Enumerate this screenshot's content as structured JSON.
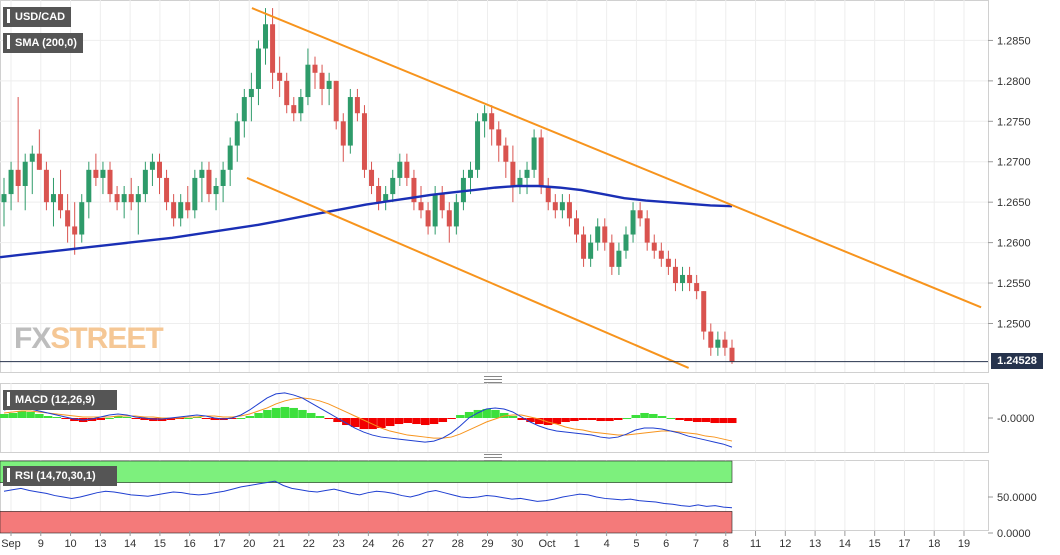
{
  "legends": {
    "symbol": "USD/CAD",
    "sma": "SMA (200,0)",
    "macd": "MACD (12,26,9)",
    "rsi": "RSI (14,70,30,1)"
  },
  "logo": {
    "fx": "FX",
    "street": "STREET"
  },
  "last_price": "1.24528",
  "colors": {
    "up": "#2e9b6a",
    "down": "#d9534f",
    "sma": "#1a2fb5",
    "channel": "#f7941d",
    "macd_line": "#1f3fd1",
    "signal_line": "#f7941d",
    "hist_pos": "#3ce03c",
    "hist_neg": "#f20000",
    "rsi_line": "#1f3fd1",
    "rsi_overbought": "#7df07d",
    "rsi_oversold": "#f47a7a",
    "grid": "#eeeeee",
    "last_line": "#26334d"
  },
  "x_labels": [
    "Sep",
    "9",
    "10",
    "13",
    "14",
    "15",
    "16",
    "17",
    "20",
    "21",
    "22",
    "23",
    "24",
    "26",
    "27",
    "28",
    "29",
    "30",
    "Oct",
    "1",
    "4",
    "5",
    "6",
    "7",
    "8",
    "11",
    "12",
    "13",
    "14",
    "15",
    "17",
    "18",
    "19"
  ],
  "chart_data": [
    {
      "type": "candlestick",
      "title": "USD/CAD",
      "y_ticks": [
        "1.2850",
        "1.2800",
        "1.2750",
        "1.2700",
        "1.2650",
        "1.2600",
        "1.2550",
        "1.2500"
      ],
      "ylim": [
        1.244,
        1.29
      ],
      "last_value": 1.24528,
      "candles": [
        [
          1.265,
          1.268,
          1.262,
          1.266
        ],
        [
          1.266,
          1.27,
          1.264,
          1.269
        ],
        [
          1.269,
          1.278,
          1.265,
          1.267
        ],
        [
          1.267,
          1.271,
          1.264,
          1.27
        ],
        [
          1.27,
          1.272,
          1.266,
          1.271
        ],
        [
          1.271,
          1.274,
          1.269,
          1.269
        ],
        [
          1.269,
          1.27,
          1.264,
          1.265
        ],
        [
          1.265,
          1.268,
          1.262,
          1.266
        ],
        [
          1.266,
          1.269,
          1.263,
          1.264
        ],
        [
          1.264,
          1.266,
          1.26,
          1.262
        ],
        [
          1.262,
          1.265,
          1.2585,
          1.261
        ],
        [
          1.261,
          1.266,
          1.26,
          1.265
        ],
        [
          1.265,
          1.27,
          1.263,
          1.269
        ],
        [
          1.269,
          1.271,
          1.267,
          1.268
        ],
        [
          1.268,
          1.27,
          1.266,
          1.269
        ],
        [
          1.269,
          1.27,
          1.265,
          1.266
        ],
        [
          1.266,
          1.267,
          1.264,
          1.265
        ],
        [
          1.265,
          1.267,
          1.263,
          1.266
        ],
        [
          1.266,
          1.268,
          1.264,
          1.265
        ],
        [
          1.265,
          1.267,
          1.261,
          1.266
        ],
        [
          1.266,
          1.27,
          1.265,
          1.269
        ],
        [
          1.269,
          1.271,
          1.267,
          1.27
        ],
        [
          1.27,
          1.271,
          1.266,
          1.268
        ],
        [
          1.268,
          1.269,
          1.264,
          1.265
        ],
        [
          1.265,
          1.266,
          1.262,
          1.263
        ],
        [
          1.263,
          1.266,
          1.262,
          1.265
        ],
        [
          1.265,
          1.267,
          1.263,
          1.264
        ],
        [
          1.264,
          1.269,
          1.263,
          1.268
        ],
        [
          1.268,
          1.27,
          1.265,
          1.269
        ],
        [
          1.269,
          1.27,
          1.265,
          1.266
        ],
        [
          1.266,
          1.268,
          1.264,
          1.267
        ],
        [
          1.267,
          1.27,
          1.265,
          1.269
        ],
        [
          1.269,
          1.273,
          1.267,
          1.272
        ],
        [
          1.272,
          1.276,
          1.27,
          1.275
        ],
        [
          1.275,
          1.279,
          1.273,
          1.278
        ],
        [
          1.278,
          1.281,
          1.275,
          1.279
        ],
        [
          1.279,
          1.285,
          1.277,
          1.284
        ],
        [
          1.284,
          1.289,
          1.282,
          1.287
        ],
        [
          1.287,
          1.289,
          1.279,
          1.281
        ],
        [
          1.281,
          1.283,
          1.278,
          1.28
        ],
        [
          1.28,
          1.281,
          1.276,
          1.277
        ],
        [
          1.277,
          1.278,
          1.275,
          1.276
        ],
        [
          1.276,
          1.279,
          1.275,
          1.278
        ],
        [
          1.278,
          1.284,
          1.277,
          1.282
        ],
        [
          1.282,
          1.283,
          1.279,
          1.281
        ],
        [
          1.281,
          1.282,
          1.277,
          1.279
        ],
        [
          1.279,
          1.281,
          1.277,
          1.28
        ],
        [
          1.28,
          1.28,
          1.274,
          1.275
        ],
        [
          1.275,
          1.276,
          1.27,
          1.272
        ],
        [
          1.272,
          1.279,
          1.271,
          1.278
        ],
        [
          1.278,
          1.279,
          1.275,
          1.276
        ],
        [
          1.276,
          1.277,
          1.268,
          1.269
        ],
        [
          1.269,
          1.27,
          1.266,
          1.267
        ],
        [
          1.267,
          1.268,
          1.264,
          1.265
        ],
        [
          1.265,
          1.267,
          1.264,
          1.266
        ],
        [
          1.266,
          1.269,
          1.265,
          1.268
        ],
        [
          1.268,
          1.271,
          1.267,
          1.27
        ],
        [
          1.27,
          1.271,
          1.267,
          1.268
        ],
        [
          1.268,
          1.269,
          1.264,
          1.265
        ],
        [
          1.265,
          1.267,
          1.263,
          1.264
        ],
        [
          1.264,
          1.265,
          1.261,
          1.262
        ],
        [
          1.262,
          1.267,
          1.261,
          1.266
        ],
        [
          1.266,
          1.267,
          1.263,
          1.264
        ],
        [
          1.264,
          1.265,
          1.26,
          1.262
        ],
        [
          1.262,
          1.266,
          1.261,
          1.265
        ],
        [
          1.265,
          1.269,
          1.264,
          1.268
        ],
        [
          1.268,
          1.27,
          1.266,
          1.269
        ],
        [
          1.269,
          1.276,
          1.268,
          1.275
        ],
        [
          1.275,
          1.277,
          1.273,
          1.276
        ],
        [
          1.276,
          1.277,
          1.272,
          1.274
        ],
        [
          1.274,
          1.275,
          1.27,
          1.272
        ],
        [
          1.272,
          1.273,
          1.268,
          1.27
        ],
        [
          1.27,
          1.272,
          1.265,
          1.267
        ],
        [
          1.267,
          1.269,
          1.266,
          1.268
        ],
        [
          1.268,
          1.27,
          1.266,
          1.269
        ],
        [
          1.269,
          1.274,
          1.268,
          1.273
        ],
        [
          1.273,
          1.274,
          1.266,
          1.267
        ],
        [
          1.267,
          1.268,
          1.264,
          1.265
        ],
        [
          1.265,
          1.266,
          1.263,
          1.264
        ],
        [
          1.264,
          1.266,
          1.263,
          1.265
        ],
        [
          1.265,
          1.266,
          1.262,
          1.263
        ],
        [
          1.263,
          1.264,
          1.26,
          1.261
        ],
        [
          1.261,
          1.262,
          1.257,
          1.258
        ],
        [
          1.258,
          1.261,
          1.257,
          1.26
        ],
        [
          1.26,
          1.263,
          1.259,
          1.262
        ],
        [
          1.262,
          1.263,
          1.259,
          1.26
        ],
        [
          1.26,
          1.261,
          1.256,
          1.257
        ],
        [
          1.257,
          1.26,
          1.256,
          1.259
        ],
        [
          1.259,
          1.262,
          1.258,
          1.261
        ],
        [
          1.261,
          1.265,
          1.26,
          1.264
        ],
        [
          1.264,
          1.265,
          1.262,
          1.263
        ],
        [
          1.263,
          1.264,
          1.259,
          1.26
        ],
        [
          1.26,
          1.261,
          1.258,
          1.259
        ],
        [
          1.259,
          1.26,
          1.257,
          1.258
        ],
        [
          1.258,
          1.259,
          1.256,
          1.257
        ],
        [
          1.257,
          1.258,
          1.254,
          1.255
        ],
        [
          1.255,
          1.257,
          1.254,
          1.256
        ],
        [
          1.256,
          1.257,
          1.254,
          1.255
        ],
        [
          1.255,
          1.256,
          1.253,
          1.254
        ],
        [
          1.254,
          1.254,
          1.248,
          1.249
        ],
        [
          1.249,
          1.25,
          1.246,
          1.247
        ],
        [
          1.247,
          1.249,
          1.246,
          1.248
        ],
        [
          1.248,
          1.249,
          1.246,
          1.247
        ],
        [
          1.247,
          1.248,
          1.245,
          1.2453
        ]
      ],
      "sma_200": [
        1.2582,
        1.2585,
        1.2588,
        1.2591,
        1.2594,
        1.2597,
        1.26,
        1.2603,
        1.2606,
        1.261,
        1.2614,
        1.2618,
        1.2622,
        1.2627,
        1.2632,
        1.2637,
        1.2642,
        1.2647,
        1.2651,
        1.2655,
        1.2659,
        1.2662,
        1.2665,
        1.2668,
        1.267,
        1.267,
        1.2668,
        1.2665,
        1.266,
        1.2655,
        1.2652,
        1.265,
        1.2648,
        1.2646,
        1.2645
      ],
      "channel_upper": {
        "from": [
          1.289,
          0.255
        ],
        "to": [
          1.252,
          0.993
        ]
      },
      "channel_lower": {
        "from": [
          1.268,
          0.25
        ],
        "to": [
          1.2445,
          0.697
        ]
      }
    },
    {
      "type": "macd",
      "title": "MACD (12,26,9)",
      "y_ticks": [
        "-0.0000"
      ],
      "histogram": [
        0.4,
        0.5,
        0.7,
        0.6,
        0.4,
        0.2,
        0.1,
        -0.1,
        -0.3,
        -0.4,
        -0.3,
        -0.2,
        0.0,
        0.2,
        0.1,
        -0.1,
        -0.2,
        -0.3,
        -0.3,
        -0.2,
        -0.1,
        0.0,
        0.1,
        -0.1,
        -0.2,
        -0.2,
        -0.1,
        0.0,
        0.2,
        0.5,
        0.8,
        1.0,
        1.1,
        1.0,
        0.8,
        0.5,
        0.2,
        -0.1,
        -0.4,
        -0.7,
        -0.9,
        -1.1,
        -1.1,
        -1.0,
        -0.8,
        -0.6,
        -0.5,
        -0.6,
        -0.7,
        -0.6,
        -0.4,
        -0.1,
        0.3,
        0.6,
        0.8,
        0.9,
        0.8,
        0.5,
        0.2,
        -0.2,
        -0.4,
        -0.6,
        -0.7,
        -0.6,
        -0.4,
        -0.3,
        -0.2,
        -0.2,
        -0.3,
        -0.3,
        -0.2,
        0.0,
        0.3,
        0.5,
        0.4,
        0.2,
        0.0,
        -0.2,
        -0.3,
        -0.4,
        -0.4,
        -0.5,
        -0.5,
        -0.5
      ],
      "macd_line": [
        0.8,
        1.0,
        1.1,
        0.9,
        0.7,
        0.5,
        0.3,
        0.1,
        -0.1,
        -0.2,
        -0.1,
        0.1,
        0.3,
        0.4,
        0.3,
        0.1,
        0.0,
        -0.1,
        -0.1,
        0.0,
        0.1,
        0.2,
        0.3,
        0.2,
        0.0,
        -0.1,
        0.0,
        0.3,
        0.8,
        1.4,
        2.0,
        2.4,
        2.5,
        2.3,
        2.0,
        1.5,
        1.0,
        0.5,
        0.0,
        -0.5,
        -1.0,
        -1.4,
        -1.7,
        -1.9,
        -2.0,
        -2.1,
        -2.2,
        -2.3,
        -2.4,
        -2.3,
        -2.0,
        -1.5,
        -0.8,
        0.0,
        0.5,
        0.9,
        1.0,
        0.9,
        0.6,
        0.1,
        -0.4,
        -0.8,
        -1.1,
        -1.3,
        -1.4,
        -1.5,
        -1.6,
        -1.7,
        -1.9,
        -2.0,
        -1.9,
        -1.6,
        -1.2,
        -1.0,
        -1.0,
        -1.1,
        -1.3,
        -1.5,
        -1.8,
        -2.0,
        -2.2,
        -2.4,
        -2.6,
        -2.9
      ],
      "signal_line": [
        0.5,
        0.6,
        0.7,
        0.7,
        0.6,
        0.5,
        0.4,
        0.3,
        0.2,
        0.1,
        0.1,
        0.1,
        0.1,
        0.2,
        0.2,
        0.2,
        0.1,
        0.1,
        0.0,
        0.0,
        0.0,
        0.1,
        0.1,
        0.2,
        0.2,
        0.1,
        0.1,
        0.2,
        0.4,
        0.7,
        1.0,
        1.4,
        1.7,
        1.9,
        2.0,
        1.9,
        1.7,
        1.4,
        1.0,
        0.6,
        0.2,
        -0.2,
        -0.6,
        -1.0,
        -1.3,
        -1.5,
        -1.7,
        -1.8,
        -1.9,
        -2.0,
        -2.0,
        -1.9,
        -1.6,
        -1.2,
        -0.8,
        -0.4,
        -0.1,
        0.2,
        0.3,
        0.3,
        0.1,
        -0.1,
        -0.4,
        -0.6,
        -0.9,
        -1.1,
        -1.2,
        -1.4,
        -1.5,
        -1.6,
        -1.7,
        -1.7,
        -1.6,
        -1.5,
        -1.4,
        -1.3,
        -1.3,
        -1.4,
        -1.5,
        -1.6,
        -1.8,
        -1.9,
        -2.1,
        -2.3
      ]
    },
    {
      "type": "rsi",
      "title": "RSI (14,70,30,1)",
      "y_ticks": [
        "50.0000",
        "0.0000"
      ],
      "ylim": [
        0,
        100
      ],
      "levels": [
        70,
        30
      ],
      "values": [
        58,
        60,
        62,
        59,
        57,
        55,
        52,
        50,
        48,
        50,
        53,
        56,
        58,
        57,
        55,
        53,
        52,
        51,
        53,
        55,
        57,
        56,
        54,
        53,
        54,
        56,
        58,
        61,
        64,
        66,
        68,
        70,
        72,
        66,
        62,
        60,
        58,
        57,
        59,
        61,
        58,
        55,
        53,
        56,
        58,
        57,
        55,
        52,
        50,
        53,
        57,
        59,
        56,
        53,
        50,
        49,
        50,
        52,
        51,
        49,
        47,
        48,
        46,
        44,
        45,
        47,
        50,
        52,
        54,
        53,
        50,
        48,
        47,
        46,
        47,
        45,
        44,
        43,
        41,
        40,
        38,
        37,
        39,
        37,
        38,
        36,
        35
      ]
    }
  ]
}
